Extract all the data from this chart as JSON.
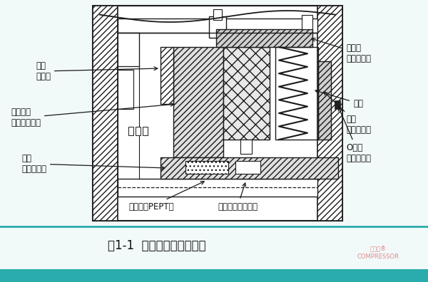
{
  "title": "图1-1  干气密封结构示意图",
  "title_fontsize": 12,
  "bg_color": "#f2f9f9",
  "bottom_bar_color": "#2aacac",
  "watermark_color": "#e08080",
  "line_color": "#1a1a1a",
  "diagram_bg": "#ffffff",
  "separator_color": "#2aacac",
  "labels": {
    "jing_huan": "静环\n（碳）",
    "dong_huan": "动环组件\n（硬质合金）",
    "zhou_tao": "轴套\n（不锈钢）",
    "tan_huang_zuo": "弹簧座\n（不锈钢）",
    "tan_huang": "弹簧",
    "tui_huan": "推环\n（不锈钢）",
    "o_quan": "O型圈\n（氟橡胶）",
    "ding_wei_huan": "定位环（PEPT）",
    "suo_jin_tao": "锁紧套（不锈钢）"
  }
}
